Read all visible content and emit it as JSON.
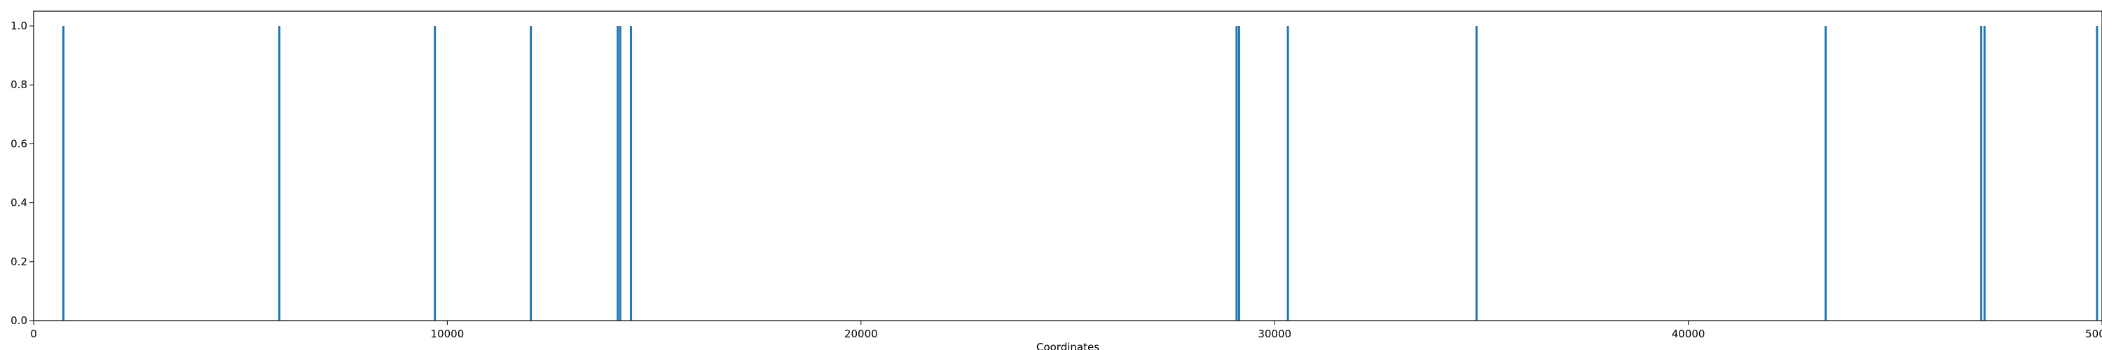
{
  "chart_data": {
    "type": "bar",
    "title": "",
    "xlabel": "Coordinates",
    "ylabel": "",
    "xlim": [
      0,
      50000
    ],
    "ylim": [
      0,
      1.05
    ],
    "grid": false,
    "bar_color": "#1f77b4",
    "x_ticks": [
      0,
      10000,
      20000,
      30000,
      40000,
      50000
    ],
    "x_tick_labels": [
      "0",
      "10000",
      "20000",
      "30000",
      "40000",
      "50000"
    ],
    "y_ticks": [
      0.0,
      0.2,
      0.4,
      0.6,
      0.8,
      1.0
    ],
    "y_tick_labels": [
      "0.0",
      "0.2",
      "0.4",
      "0.6",
      "0.8",
      "1.0"
    ],
    "x": [
      720,
      5940,
      9700,
      12020,
      14120,
      14180,
      14440,
      29080,
      29140,
      30320,
      34880,
      43320,
      47080,
      47160,
      49880
    ],
    "values": [
      1,
      1,
      1,
      1,
      1,
      1,
      1,
      1,
      1,
      1,
      1,
      1,
      1,
      1,
      1
    ]
  }
}
